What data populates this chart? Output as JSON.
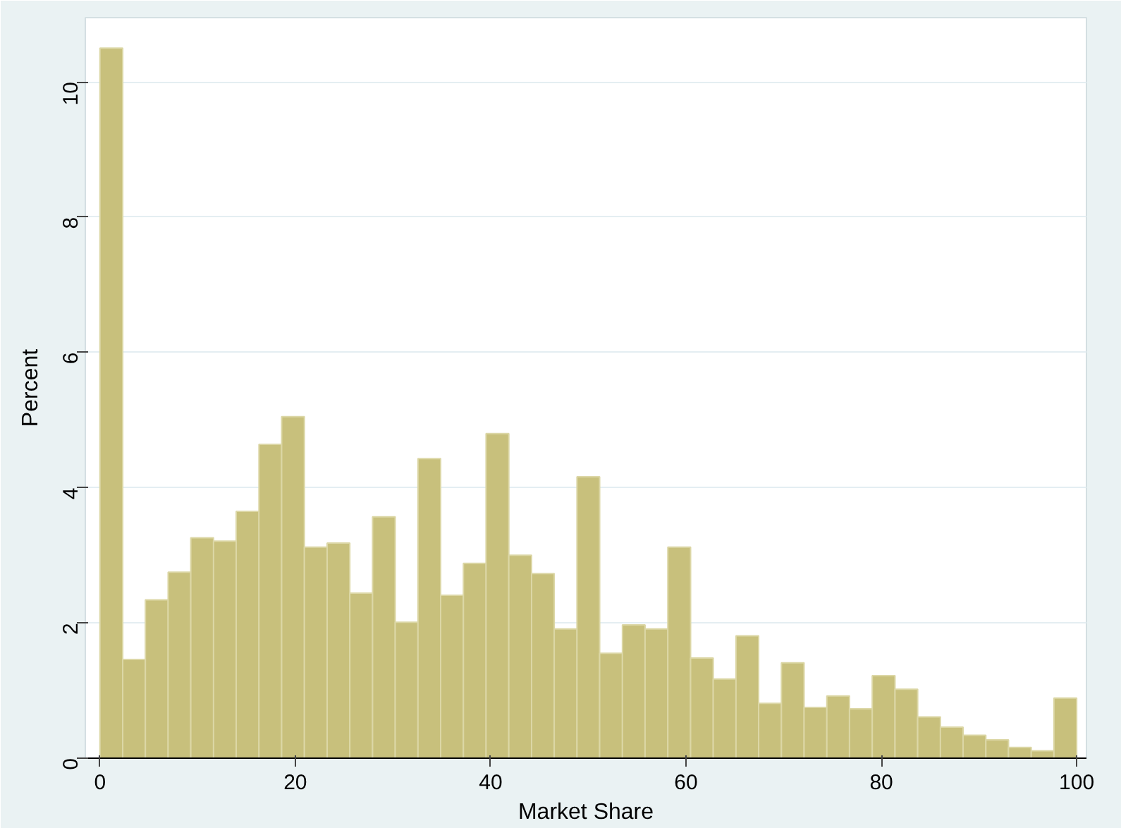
{
  "chart_data": {
    "type": "histogram",
    "xlabel": "Market Share",
    "ylabel": "Percent",
    "bins": [
      0,
      2.33,
      4.65,
      6.98,
      9.3,
      11.63,
      13.95,
      16.28,
      18.6,
      20.93,
      23.26,
      25.58,
      27.91,
      30.23,
      32.56,
      34.88,
      37.21,
      39.53,
      41.86,
      44.19,
      46.51,
      48.84,
      51.16,
      53.49,
      55.81,
      58.14,
      60.47,
      62.79,
      65.12,
      67.44,
      69.77,
      72.09,
      74.42,
      76.74,
      79.07,
      81.4,
      83.72,
      86.05,
      88.37,
      90.7,
      93.02,
      95.35,
      97.67,
      100
    ],
    "values": [
      10.5,
      1.46,
      2.34,
      2.75,
      3.26,
      3.21,
      3.65,
      4.64,
      5.05,
      3.12,
      3.18,
      2.44,
      3.57,
      2.01,
      4.43,
      2.41,
      2.88,
      4.8,
      3.0,
      2.73,
      1.91,
      4.16,
      1.55,
      1.97,
      1.91,
      3.12,
      1.48,
      1.17,
      1.81,
      0.81,
      1.41,
      0.75,
      0.92,
      0.73,
      1.22,
      1.02,
      0.61,
      0.46,
      0.34,
      0.27,
      0.16,
      0.11,
      0.89
    ],
    "color": "#c8c07c",
    "xlim": [
      -1.5,
      101
    ],
    "ylim": [
      0,
      10.95
    ],
    "xticks": [
      0,
      20,
      40,
      60,
      80,
      100
    ],
    "yticks": [
      0,
      2,
      4,
      6,
      8,
      10
    ],
    "grid": "y"
  }
}
